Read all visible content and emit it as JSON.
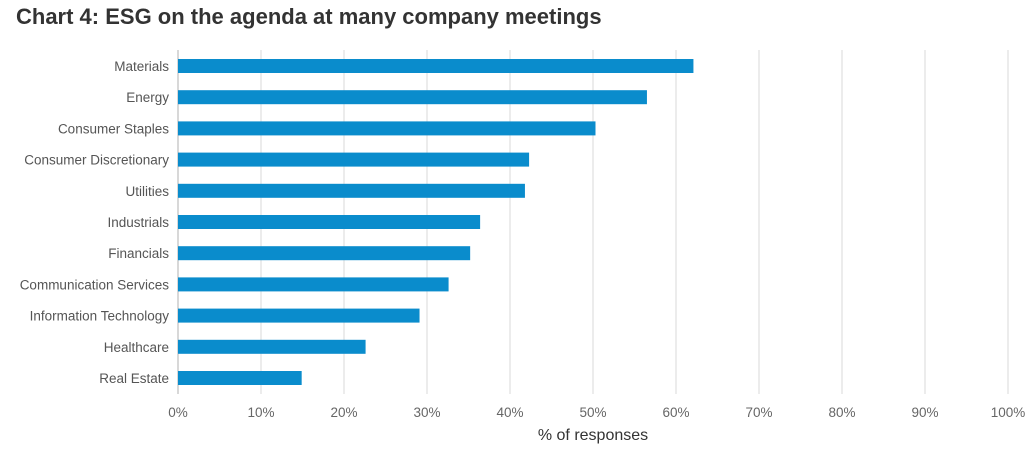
{
  "chart_data": {
    "type": "bar",
    "orientation": "horizontal",
    "title": "Chart 4: ESG on the agenda at many company meetings",
    "xlabel": "% of responses",
    "ylabel": "",
    "xlim": [
      0,
      100
    ],
    "x_ticks": [
      "0%",
      "10%",
      "20%",
      "30%",
      "40%",
      "50%",
      "60%",
      "70%",
      "80%",
      "90%",
      "100%"
    ],
    "grid": "vertical",
    "bar_color": "#0a8ccc",
    "categories": [
      "Materials",
      "Energy",
      "Consumer Staples",
      "Consumer Discretionary",
      "Utilities",
      "Industrials",
      "Financials",
      "Communication Services",
      "Information Technology",
      "Healthcare",
      "Real Estate"
    ],
    "values": [
      62.1,
      56.5,
      50.3,
      42.3,
      41.8,
      36.4,
      35.2,
      32.6,
      29.1,
      22.6,
      14.9
    ]
  }
}
